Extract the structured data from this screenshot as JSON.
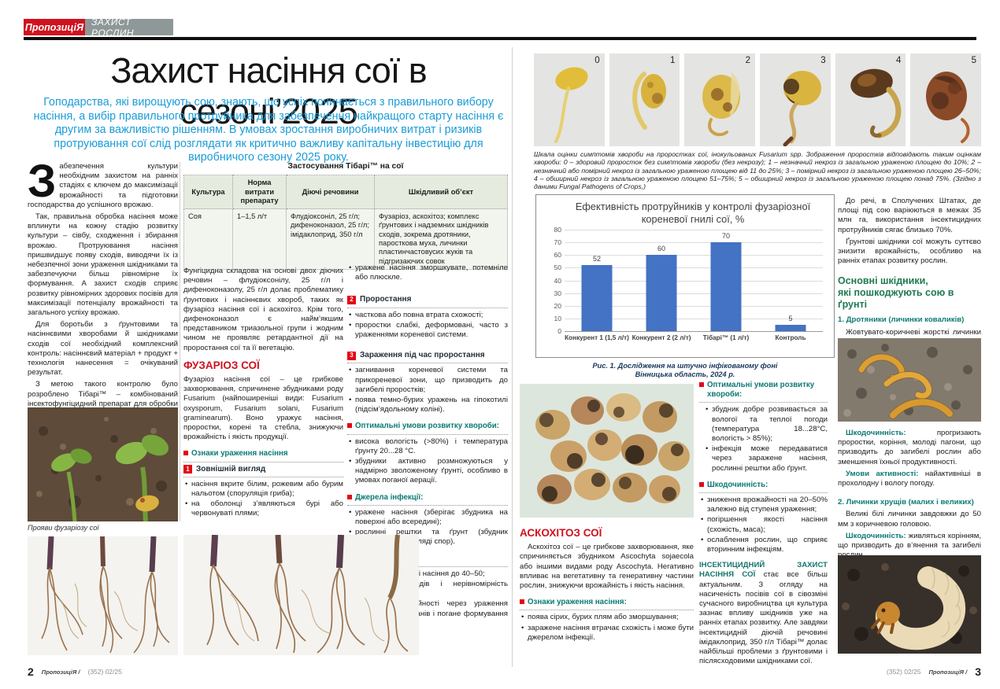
{
  "masthead": {
    "logo": "ПропозиціЯ",
    "section": "ЗАХИСТ РОСЛИН"
  },
  "left_page": {
    "title": "Захист насіння сої в сезоні’2025",
    "intro": "Гоподарства, які вирощують сою, знають, що успіх починається з правильного вибору насіння, а вибір правильного протруйника для забезпечення найкращого старту насіння є другим за важливістю рішенням. В умовах зростання виробничих витрат і ризиків протруювання сої слід розглядати як критично важливу капітальну інвестицію для виробничого сезону 2025 року.",
    "col1": {
      "dropcap": "З",
      "p1": "абезпечення культури необхідним захистом на ранніх стадіях є ключем до максимізації врожайності та підготовки господарства до успішного врожаю.",
      "p2": "Так, правильна обробка насіння може вплинути на кожну стадію розвитку культури – сівбу, сходження і збирання врожаю. Протруювання насіння пришвидшує появу сходів, виводячи їх із небезпечної зони ураження шкідниками та забезпечуючи більш рівномірне їх формування. А захист сходів сприяє розвитку рівномірних здорових посівів для максимізації потенціалу врожайності та загального успіху врожаю.",
      "p3": "Для боротьби з ґрунтовими та насіннєвими хворобами й шкідниками сходів сої необхідний комплексний контроль: насіннєвий матеріал + продукт + технологія нанесення = очікуваний результат.",
      "p4": "З метою такого контролю було розроблено Тібарі™ – комбінований інсектофунгіцидний препарат для обробки насіння сої проти основних ґрунтових та насіннєвих хвороб і комплексу ґрунтових і надземних шкідників.",
      "photo_caption": "Прояви фузаріозу сої"
    },
    "table": {
      "title": "Застосування  Тібарі™ на сої",
      "headers": [
        "Культура",
        "Норма витрати препарату",
        "Діючі речовини",
        "Шкідливий об’єкт"
      ],
      "row": {
        "crop": "Соя",
        "rate": "1–1,5 л/т",
        "actives": "Флудіоксоніл, 25 г/л; дифеноконазол, 25 г/л;  імідаклоприд, 350 г/л",
        "target": "Фузаріоз, аскохітоз; комплекс ґрунтових і надземних шкідників сходів, зокрема дротяники, паросткова муха, личинки пластинчастовусих жуків та підгризаючих совок"
      }
    },
    "col2": {
      "p1": "Фунгіцидна складова на основі двох діючих речовин – флудіоксонілу, 25 г/л і дифеноконазолу, 25 г/л долає проблематику ґрунтових і насіннєвих хвороб, таких як фузаріоз насіння сої і аскохітоз. Крім того, дифеноконазол є найм’якшим представником триазольної групи і жодним чином не проявляє ретардантної дії на проростання сої та її вегетацію.",
      "header": "ФУЗАРІОЗ СОЇ",
      "p2": "Фузаріоз насіння сої – це грибкове захворювання, спричинене збудниками роду Fusarium (найпоширеніші види: Fusarium oxysporum, Fusarium solani, Fusarium graminearum). Воно уражує насіння, проростки, корені та стебла, знижуючи врожайність і якість продукції.",
      "sub_signs": "Ознаки ураження насіння",
      "num1_label": "1",
      "num1_title": "Зовнішній вигляд",
      "num1_b1": "насіння вкрите білим, рожевим або бурим нальотом (споруляція гриба);",
      "num1_b2": "на оболонці з’являються бурі або червонуваті плями;"
    },
    "col3": {
      "b0": "уражене насіння зморшкувате, потемніле або плюскле.",
      "num2_label": "2",
      "num2_title": "Проростання",
      "num2_b1": "часткова або повна втрата схожості;",
      "num2_b2": "проростки слабкі, деформовані, часто з ураженнями кореневої системи.",
      "num3_label": "3",
      "num3_title": "Зараження під час проростання",
      "num3_b1": "загнивання кореневої системи та прикореневої зони, що призводить до загибелі проростків;",
      "num3_b2": "поява темно-бурих уражень на гіпокотилі (підсім’ядольному коліні).",
      "sub_opt": "Оптимальні умови розвитку хвороби:",
      "opt_b1": "висока вологість (>80%) і температура ґрунту 20...28 °С.",
      "opt_b2": "збудники активно розмножуються у надмірно зволоженому ґрунті, особливо в умовах поганої аерації.",
      "sub_src": "Джерела інфекції:",
      "src_b1": "уражене насіння (зберігає збудника на поверхні або всередині);",
      "src_b2": "рослинні рештки та ґрунт (збудник зберігається у вигляді спор).",
      "sub_harm": "Шкодочинність:",
      "harm_b1": "зниження схожості насіння до 40–50;",
      "harm_b2": "ослаблення сходів і нерівномірність посівів;",
      "harm_b3": "зниження врожайності через ураження генеративних органів і погане формування бобів."
    },
    "footer": {
      "page": "2",
      "brand": "ПропозиціЯ /",
      "issue": "(352) 02/25"
    }
  },
  "right_page": {
    "seed_scale": {
      "labels": [
        "0",
        "1",
        "2",
        "3",
        "4",
        "5"
      ],
      "caption": "Шкала оцінки симптомів хвороби на проростках сої, інокульованих Fusarium spp. Зображення проростків відповідають таким оцінкам хвороби: 0 – здоровий проросток без симптомів хвороби (без некрозу); 1 – незначний некроз із загальною ураженою площею до 10%; 2 – незначний або помірний некроз із загальною ураженою площею від 11 до 25%; 3 – помірний некроз із загальною ураженою площею 26–50%; 4 – обширний некроз із загальною ураженою площею 51–75%; 5 – обширний некроз із загальною ураженою площею понад 75%. (Згідно з даними  Fungal Pathogens of Crops,)"
    },
    "ascochytosis": {
      "header": "АСКОХІТОЗ СОЇ",
      "p1": "Аскохітоз сої – це грибкове захворювання, яке спричиняється збудником Ascochyta sojaecola або іншими видами роду Ascochyta. Негативно впливає на вегетативну та генеративну частини рослин, знижуючи врожайність і якість насіння.",
      "sub_signs": "Ознаки ураження насіння:",
      "signs_b1": "поява сірих, бурих плям або зморшування;",
      "signs_b2": "заражене насіння втрачає схожість і може бути джерелом інфекції."
    },
    "mid2": {
      "sub_opt": "Оптимальні умови розвитку хвороби:",
      "opt_b1": "збудник добре розвивається за вологої та теплої погоди (температура 18...28°С, вологість > 85%);",
      "opt_b2": "інфекція може передаватися через заражене насіння, рослинні рештки або ґрунт.",
      "sub_harm": "Шкодочинність:",
      "harm_b1": "зниження врожайності на 20–50% залежно від ступеня ураження;",
      "harm_b2": "погіршення якості насіння (схожість, маса);",
      "harm_b3": "ослаблення рослин, що сприяє вторинним інфекціям.",
      "insect_lead": "ІНСЕКТИЦИДНИЙ ЗАХИСТ НАСІННЯ СОЇ",
      "insect_rest": " стає все більш актуальним. З огляду на насиченість посівів сої в сівозміні сучасного виробництва ця культура зазнає впливу шкідників уже на ранніх етапах розвитку. Але завдяки інсектицидній діючій речовині імідаклоприд, 350 г/л Тібарі™ долає найбільші проблеми з ґрунтовими і післясходовими шкідниками сої."
    },
    "rightcol": {
      "p1": "До речі, в Сполучених Штатах, де площі під сою варіюються в межах 35 млн га, використання інсектицидних протруйників сягає близько 70%.",
      "p2": "Ґрунтові шкідники сої можуть суттєво знизити врожайність, особливо на ранніх етапах розвитку рослин.",
      "header_line1": "Основні шкідники,",
      "header_line2": "які пошкоджують сою в ґрунті",
      "pest1_title": "1. Дротяники (личинки коваликів)",
      "pest1_desc": "Жовтувато-коричневі жорсткі личинки завдовжки 10–25 мм.",
      "pest1_harm_lead": "Шкодочинність:",
      "pest1_harm": " прогризають проростки, коріння, молоді пагони, що призводить до загибелі рослин або зменшення їхньої продуктивності.",
      "pest1_cond_lead": "Умови активності:",
      "pest1_cond": " найактивніші в прохолодну і вологу погоду.",
      "pest2_title": "2. Личинки хрущів (малих і великих)",
      "pest2_desc": "Великі білі личинки завдовжки до 50 мм з коричневою головою.",
      "pest2_harm_lead": "Шкодочинність:",
      "pest2_harm": " живляться корінням, що призводить до в’янення та загибелі рослин."
    },
    "footer": {
      "issue": "(352) 02/25",
      "brand": "ПропозиціЯ /",
      "page": "3"
    }
  },
  "chart_data": {
    "type": "bar",
    "title": "Ефективність протруйників у контролі фузаріозної кореневої гнилі сої, %",
    "categories": [
      "Конкурент 1 (1,5 л/т)",
      "Конкурент 2 (2 л/т)",
      "Тібарі™ (1 л/т)",
      "Контроль"
    ],
    "values": [
      52,
      60,
      70,
      5
    ],
    "ylim": [
      0,
      80
    ],
    "ytick_step": 10,
    "bar_color": "#4472c4",
    "grid": true,
    "legend": "none",
    "caption_line1": "Рис. 1. Дослідження на штучно інфікованому фоні",
    "caption_line2": "Вінницька область, 2024 р."
  }
}
